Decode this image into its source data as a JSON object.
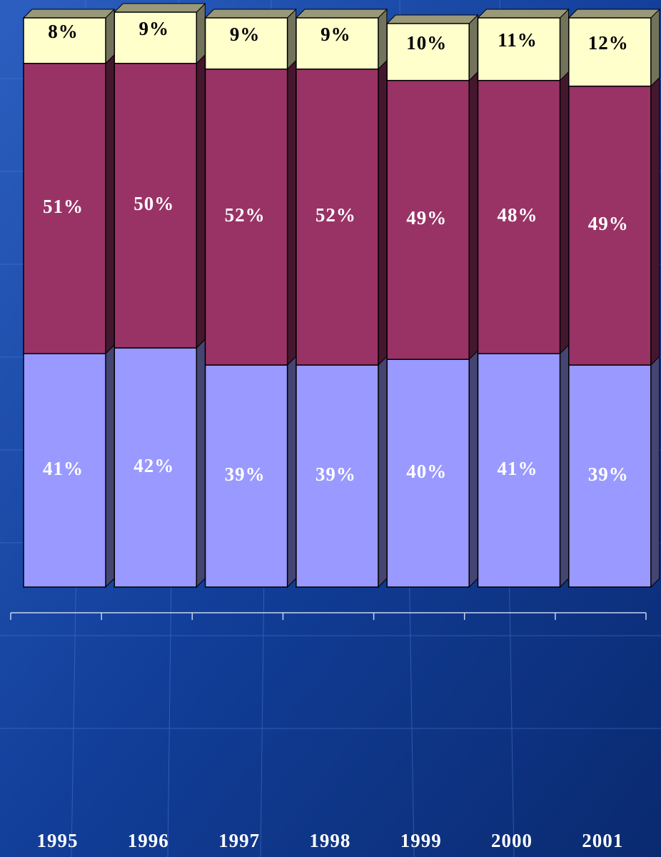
{
  "chart_data": {
    "type": "stacked-bar-3d",
    "categories": [
      "1995",
      "1996",
      "1997",
      "1998",
      "1999",
      "2000",
      "2001"
    ],
    "series": [
      {
        "color": "#9999ff",
        "values": [
          41,
          42,
          39,
          39,
          40,
          41,
          39
        ],
        "value_labels": [
          "41%",
          "42%",
          "39%",
          "39%",
          "40%",
          "41%",
          "39%"
        ]
      },
      {
        "color": "#993366",
        "values": [
          51,
          50,
          52,
          52,
          49,
          48,
          49
        ],
        "value_labels": [
          "51%",
          "50%",
          "52%",
          "52%",
          "49%",
          "48%",
          "49%"
        ]
      },
      {
        "color": "#ffffcc",
        "values": [
          8,
          9,
          9,
          9,
          10,
          11,
          12
        ],
        "value_labels": [
          "8%",
          "9%",
          "9%",
          "9%",
          "10%",
          "11%",
          "12%"
        ]
      }
    ],
    "ylim": [
      0,
      100
    ]
  }
}
